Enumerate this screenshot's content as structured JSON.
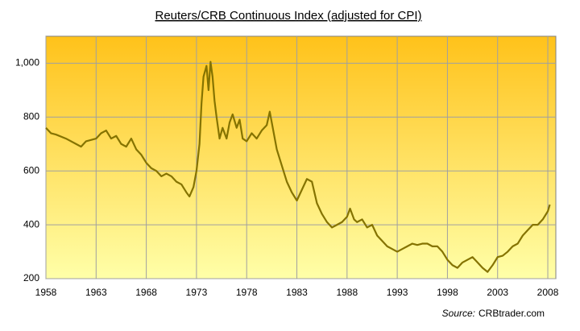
{
  "chart_data": {
    "type": "line",
    "title": "Reuters/CRB Continuous Index (adjusted for CPI)",
    "source_label": "Source:",
    "source": "CRBtrader.com",
    "x": [
      1958,
      1958.5,
      1959,
      1960,
      1961,
      1961.5,
      1962,
      1963,
      1963.5,
      1964,
      1964.5,
      1965,
      1965.5,
      1966,
      1966.5,
      1967,
      1967.5,
      1968,
      1968.5,
      1969,
      1969.5,
      1970,
      1970.5,
      1971,
      1971.5,
      1972,
      1972.3,
      1972.7,
      1973,
      1973.3,
      1973.5,
      1973.7,
      1974,
      1974.2,
      1974.4,
      1974.6,
      1974.8,
      1975,
      1975.3,
      1975.6,
      1976,
      1976.3,
      1976.6,
      1977,
      1977.3,
      1977.6,
      1978,
      1978.5,
      1979,
      1979.5,
      1980,
      1980.3,
      1980.6,
      1981,
      1981.5,
      1982,
      1982.5,
      1983,
      1983.5,
      1984,
      1984.5,
      1985,
      1985.5,
      1986,
      1986.5,
      1987,
      1987.5,
      1988,
      1988.3,
      1988.7,
      1989,
      1989.5,
      1990,
      1990.5,
      1991,
      1991.5,
      1992,
      1992.5,
      1993,
      1993.5,
      1994,
      1994.5,
      1995,
      1995.5,
      1996,
      1996.5,
      1997,
      1997.5,
      1998,
      1998.5,
      1999,
      1999.5,
      2000,
      2000.5,
      2001,
      2001.5,
      2002,
      2002.5,
      2003,
      2003.5,
      2004,
      2004.5,
      2005,
      2005.5,
      2006,
      2006.5,
      2007,
      2007.5,
      2008,
      2008.2
    ],
    "series": [
      {
        "color": "#857300",
        "values": [
          760,
          740,
          735,
          720,
          700,
          690,
          710,
          720,
          740,
          750,
          720,
          730,
          700,
          690,
          720,
          680,
          660,
          630,
          610,
          600,
          580,
          590,
          580,
          560,
          550,
          520,
          505,
          540,
          600,
          700,
          850,
          950,
          990,
          900,
          1005,
          950,
          860,
          800,
          720,
          760,
          720,
          780,
          810,
          760,
          790,
          720,
          710,
          740,
          720,
          750,
          770,
          820,
          760,
          680,
          620,
          560,
          520,
          490,
          530,
          570,
          560,
          480,
          440,
          410,
          390,
          400,
          410,
          430,
          460,
          420,
          410,
          420,
          390,
          400,
          360,
          340,
          320,
          310,
          300,
          310,
          320,
          330,
          325,
          330,
          330,
          320,
          320,
          300,
          270,
          250,
          240,
          260,
          270,
          280,
          260,
          240,
          225,
          250,
          280,
          285,
          300,
          320,
          330,
          360,
          380,
          400,
          400,
          420,
          450,
          475
        ]
      }
    ],
    "xlim": [
      1958,
      2008.8
    ],
    "ylim": [
      200,
      1100
    ],
    "xticks": [
      1958,
      1963,
      1968,
      1973,
      1978,
      1983,
      1988,
      1993,
      1998,
      2003,
      2008
    ],
    "yticks": [
      200,
      400,
      600,
      800,
      {
        "value": 1000,
        "label": "1,000"
      }
    ],
    "grid": true
  }
}
